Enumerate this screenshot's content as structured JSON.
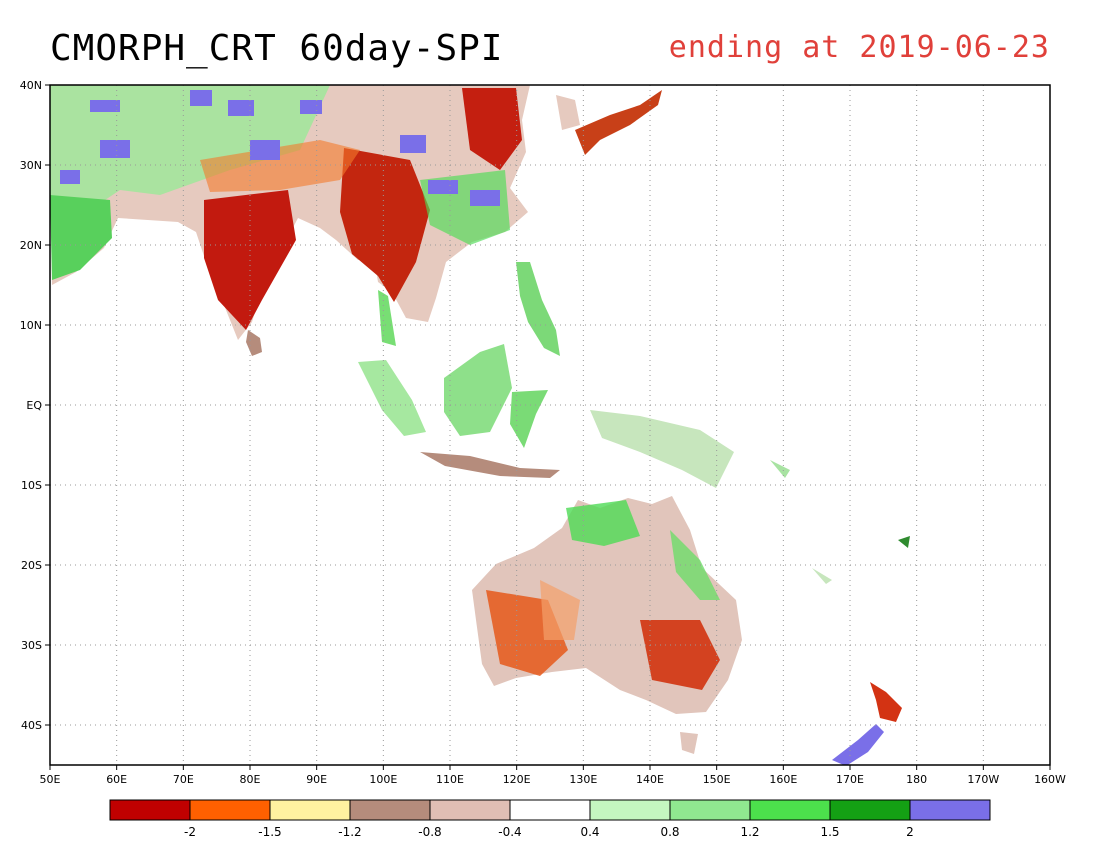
{
  "title": {
    "left": "CMORPH_CRT 60day-SPI",
    "right": "ending at 2019-06-23",
    "right_color": "#e0403a"
  },
  "map": {
    "lon_range": [
      50,
      200
    ],
    "lat_range": [
      -45,
      40
    ],
    "lon_labels": [
      "50E",
      "60E",
      "70E",
      "80E",
      "90E",
      "100E",
      "110E",
      "120E",
      "130E",
      "140E",
      "150E",
      "160E",
      "170E",
      "180",
      "170W",
      "160W"
    ],
    "lat_labels": [
      "40N",
      "30N",
      "20N",
      "10N",
      "EQ",
      "10S",
      "20S",
      "30S",
      "40S"
    ],
    "lat_values": [
      40,
      30,
      20,
      10,
      0,
      -10,
      -20,
      -30,
      -40
    ],
    "grid": true
  },
  "colorbar": {
    "colors": [
      "#c00000",
      "#ff6000",
      "#fff2a0",
      "#b58c7c",
      "#e0beb4",
      "#ffffff",
      "#c4f6c0",
      "#90e890",
      "#4ce04c",
      "#14a014",
      "#7a6fe8"
    ],
    "labels": [
      "-2",
      "-1.5",
      "-1.2",
      "-0.8",
      "-0.4",
      "0.4",
      "0.8",
      "1.2",
      "1.5",
      "2"
    ]
  }
}
